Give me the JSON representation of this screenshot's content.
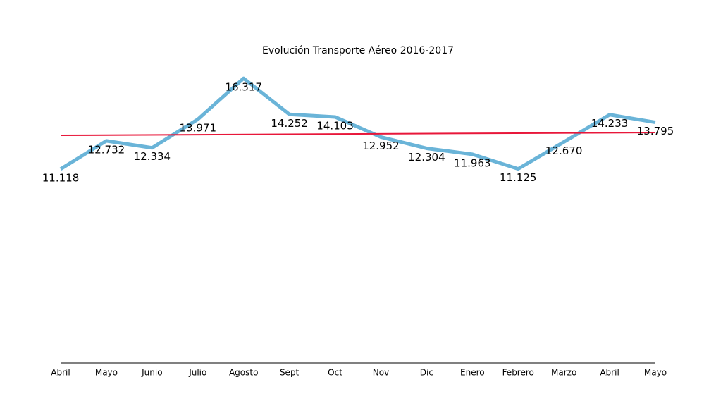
{
  "chart_data": {
    "type": "line",
    "title": "Evolución Transporte Aéreo 2016-2017",
    "categories": [
      "Abril",
      "Mayo",
      "Junio",
      "Julio",
      "Agosto",
      "Sept",
      "Oct",
      "Nov",
      "Dic",
      "Enero",
      "Febrero",
      "Marzo",
      "Abril",
      "Mayo"
    ],
    "series": [
      {
        "color": "#6ab4d8",
        "values": [
          11118,
          12732,
          12334,
          13971,
          16317,
          14252,
          14103,
          12952,
          12304,
          11963,
          11125,
          12670,
          14233,
          13795
        ],
        "value_labels": [
          "11.118",
          "12.732",
          "12.334",
          "13.971",
          "16.317",
          "14.252",
          "14.103",
          "12.952",
          "12.304",
          "11.963",
          "11.125",
          "12.670",
          "14.233",
          "13.795"
        ]
      }
    ],
    "trend": {
      "color": "#e8173a",
      "values": [
        13050,
        13210
      ]
    },
    "ylim": [
      0,
      20000
    ]
  }
}
